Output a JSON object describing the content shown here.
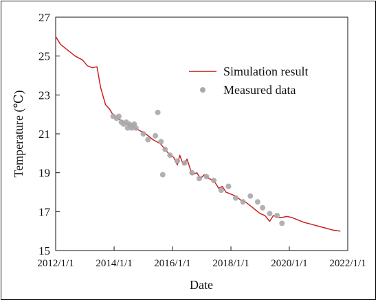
{
  "chart_data": {
    "type": "line",
    "title": "",
    "xlabel": "Date",
    "ylabel": "Temperature (℃)",
    "xlim": [
      "2012-01-01",
      "2022-01-01"
    ],
    "ylim": [
      15,
      27
    ],
    "xticks": [
      "2012/1/1",
      "2014/1/1",
      "2016/1/1",
      "2018/1/1",
      "2020/1/1",
      "2022/1/1"
    ],
    "yticks": [
      15,
      17,
      19,
      21,
      23,
      25,
      27
    ],
    "grid": false,
    "legend_position": "top-right",
    "series": [
      {
        "name": "Simulation result",
        "kind": "line",
        "color": "#cc1f1f",
        "x": [
          "2012-01-01",
          "2012-03-01",
          "2012-06-01",
          "2012-09-01",
          "2012-12-01",
          "2013-02-01",
          "2013-04-01",
          "2013-06-01",
          "2013-07-15",
          "2013-09-15",
          "2013-11-01",
          "2013-12-15",
          "2014-02-15",
          "2014-05-01",
          "2014-08-01",
          "2014-11-01",
          "2015-02-01",
          "2015-05-01",
          "2015-08-01",
          "2015-10-01",
          "2015-12-01",
          "2016-01-15",
          "2016-03-01",
          "2016-04-01",
          "2016-05-15",
          "2016-07-01",
          "2016-09-01",
          "2016-11-01",
          "2016-12-15",
          "2017-02-01",
          "2017-04-01",
          "2017-06-01",
          "2017-08-01",
          "2017-09-15",
          "2017-11-01",
          "2018-01-01",
          "2018-03-01",
          "2018-05-01",
          "2018-07-01",
          "2018-09-01",
          "2018-11-01",
          "2019-01-01",
          "2019-03-01",
          "2019-05-01",
          "2019-06-15",
          "2019-08-01",
          "2019-10-01",
          "2019-12-01",
          "2020-02-01",
          "2020-04-01",
          "2020-07-01",
          "2020-10-01",
          "2021-01-01",
          "2021-04-01",
          "2021-07-01",
          "2021-10-01"
        ],
        "y": [
          26.0,
          25.6,
          25.3,
          25.0,
          24.8,
          24.5,
          24.4,
          24.45,
          23.4,
          22.5,
          22.3,
          22.0,
          21.8,
          21.6,
          21.4,
          21.2,
          21.0,
          20.7,
          20.5,
          20.2,
          19.9,
          19.8,
          19.4,
          19.9,
          19.4,
          19.7,
          18.9,
          19.0,
          18.7,
          18.9,
          18.7,
          18.6,
          18.2,
          18.3,
          18.0,
          17.9,
          17.8,
          17.6,
          17.5,
          17.3,
          17.1,
          16.9,
          16.8,
          16.5,
          16.8,
          16.7,
          16.7,
          16.75,
          16.7,
          16.6,
          16.45,
          16.35,
          16.25,
          16.15,
          16.05,
          16.0
        ]
      },
      {
        "name": "Measured data",
        "kind": "scatter",
        "color": "#a9a9ab",
        "x": [
          "2013-12-20",
          "2014-02-01",
          "2014-03-01",
          "2014-04-01",
          "2014-05-01",
          "2014-06-01",
          "2014-06-20",
          "2014-07-10",
          "2014-07-25",
          "2014-08-10",
          "2014-08-25",
          "2014-09-10",
          "2014-10-01",
          "2015-01-01",
          "2015-03-01",
          "2015-06-01",
          "2015-07-01",
          "2015-08-10",
          "2015-09-01",
          "2015-10-01",
          "2015-12-01",
          "2016-03-01",
          "2016-06-01",
          "2016-09-01",
          "2016-12-01",
          "2017-03-01",
          "2017-06-01",
          "2017-09-01",
          "2017-12-01",
          "2018-03-01",
          "2018-06-01",
          "2018-09-01",
          "2018-12-01",
          "2019-02-01",
          "2019-05-01",
          "2019-08-01",
          "2019-10-01"
        ],
        "y": [
          21.9,
          21.8,
          21.9,
          21.6,
          21.5,
          21.6,
          21.3,
          21.5,
          21.4,
          21.3,
          21.4,
          21.5,
          21.3,
          21.0,
          20.7,
          20.9,
          22.1,
          20.6,
          18.9,
          20.2,
          19.9,
          19.6,
          19.5,
          19.0,
          18.7,
          18.8,
          18.6,
          18.1,
          18.3,
          17.7,
          17.5,
          17.8,
          17.5,
          17.2,
          16.9,
          16.8,
          16.4
        ]
      }
    ]
  }
}
